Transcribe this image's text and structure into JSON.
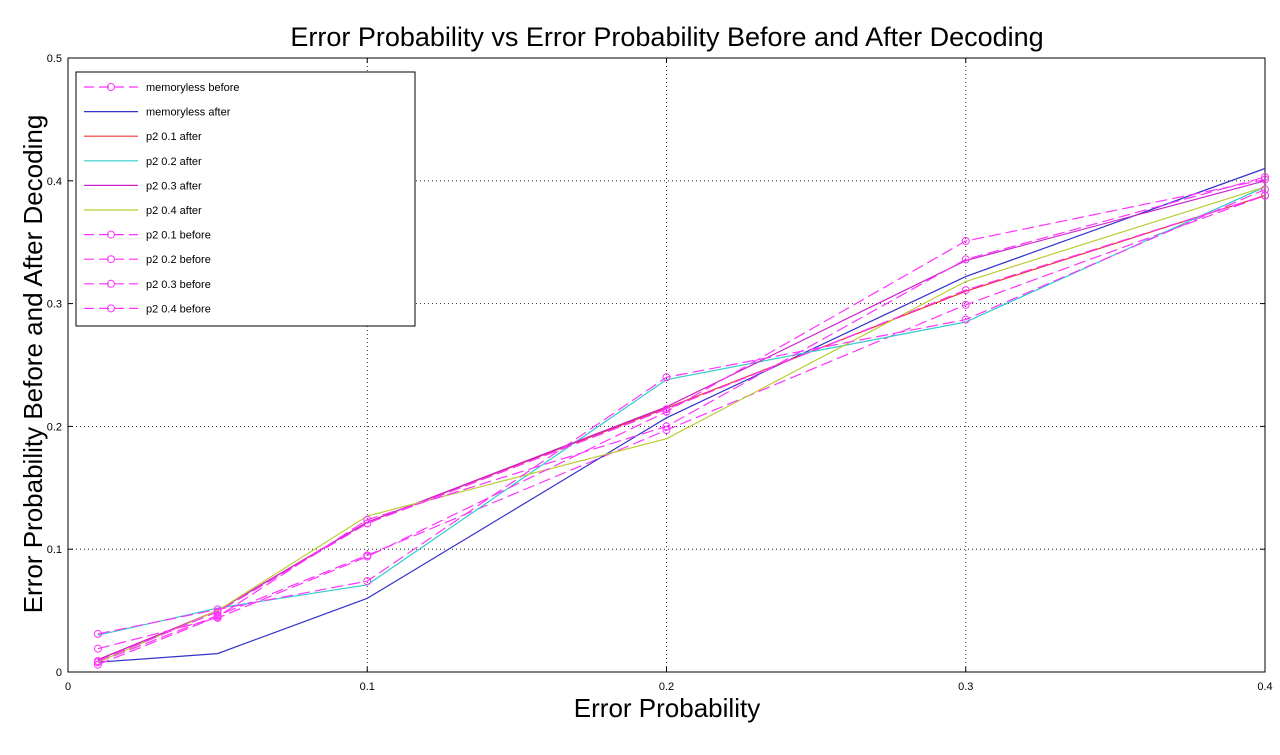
{
  "chart_data": {
    "type": "line",
    "title": "Error Probability vs Error Probability Before and After Decoding",
    "xlabel": "Error Probability",
    "ylabel": "Error Probability Before and After Decoding",
    "xlim": [
      0,
      0.4
    ],
    "ylim": [
      0,
      0.5
    ],
    "xticks": [
      0,
      0.1,
      0.2,
      0.3,
      0.4
    ],
    "xtick_labels": [
      "0",
      "0.1",
      "0.2",
      "0.3",
      "0.4"
    ],
    "yticks": [
      0,
      0.1,
      0.2,
      0.3,
      0.4,
      0.5
    ],
    "ytick_labels": [
      "0",
      "0.1",
      "0.2",
      "0.3",
      "0.4",
      "0.5"
    ],
    "grid": true,
    "legend_position": "top-left",
    "x": [
      0.01,
      0.05,
      0.1,
      0.2,
      0.3,
      0.4
    ],
    "series": [
      {
        "name": "memoryless before",
        "color": "#ff33ff",
        "dashed": true,
        "marker": "circle",
        "values": [
          0.008,
          0.046,
          0.095,
          0.197,
          0.299,
          0.388
        ]
      },
      {
        "name": "memoryless after",
        "color": "#3333cc",
        "dashed": false,
        "marker": "none",
        "values": [
          0.008,
          0.015,
          0.06,
          0.207,
          0.322,
          0.41
        ]
      },
      {
        "name": "p2 0.1 after",
        "color": "#ee3333",
        "dashed": false,
        "marker": "none",
        "values": [
          0.01,
          0.05,
          0.122,
          0.215,
          0.31,
          0.388
        ]
      },
      {
        "name": "p2 0.2 after",
        "color": "#33cccc",
        "dashed": false,
        "marker": "none",
        "values": [
          0.03,
          0.052,
          0.071,
          0.238,
          0.285,
          0.395
        ]
      },
      {
        "name": "p2 0.3 after",
        "color": "#cc22cc",
        "dashed": false,
        "marker": "none",
        "values": [
          0.01,
          0.05,
          0.122,
          0.216,
          0.335,
          0.4
        ]
      },
      {
        "name": "p2 0.4 after",
        "color": "#bbcc33",
        "dashed": false,
        "marker": "none",
        "values": [
          0.008,
          0.05,
          0.127,
          0.19,
          0.318,
          0.395
        ]
      },
      {
        "name": "p2 0.1 before",
        "color": "#ff33ff",
        "dashed": true,
        "marker": "circle",
        "values": [
          0.009,
          0.049,
          0.121,
          0.214,
          0.311,
          0.388
        ]
      },
      {
        "name": "p2 0.2 before",
        "color": "#ff33ff",
        "dashed": true,
        "marker": "circle",
        "values": [
          0.031,
          0.051,
          0.074,
          0.24,
          0.287,
          0.393
        ]
      },
      {
        "name": "p2 0.3 before",
        "color": "#ff33ff",
        "dashed": true,
        "marker": "circle",
        "values": [
          0.019,
          0.044,
          0.094,
          0.212,
          0.351,
          0.401
        ]
      },
      {
        "name": "p2 0.4 before",
        "color": "#ff33ff",
        "dashed": true,
        "marker": "circle",
        "values": [
          0.006,
          0.045,
          0.124,
          0.2,
          0.336,
          0.403
        ]
      }
    ]
  }
}
